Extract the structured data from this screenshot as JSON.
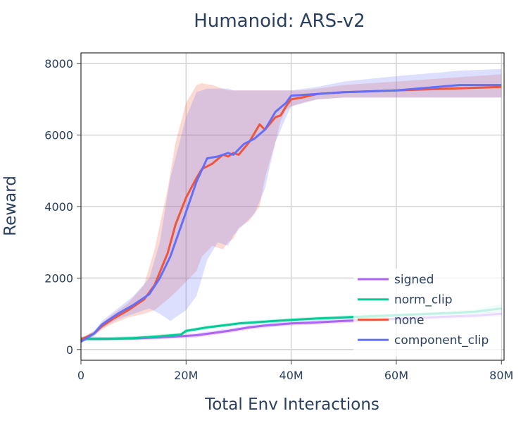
{
  "chart_data": {
    "type": "line",
    "title": "Humanoid: ARS-v2",
    "xlabel": "Total Env Interactions",
    "ylabel": "Reward",
    "xlim": [
      0,
      80500000
    ],
    "ylim": [
      -300,
      8300
    ],
    "x_ticks": [
      {
        "value": 0,
        "label": "0"
      },
      {
        "value": 20000000,
        "label": "20M"
      },
      {
        "value": 40000000,
        "label": "40M"
      },
      {
        "value": 60000000,
        "label": "60M"
      },
      {
        "value": 80000000,
        "label": "80M"
      }
    ],
    "y_ticks": [
      {
        "value": 0,
        "label": "0"
      },
      {
        "value": 2000,
        "label": "2000"
      },
      {
        "value": 4000,
        "label": "4000"
      },
      {
        "value": 6000,
        "label": "6000"
      },
      {
        "value": 8000,
        "label": "8000"
      }
    ],
    "grid": true,
    "legend_position": "bottom-right",
    "series": [
      {
        "name": "signed",
        "color": "#ab63fa",
        "x": [
          0,
          5000000,
          10000000,
          15000000,
          20000000,
          22000000,
          25000000,
          28000000,
          30000000,
          32000000,
          35000000,
          40000000,
          45000000,
          50000000,
          55000000,
          60000000,
          65000000,
          70000000,
          75000000,
          80000000
        ],
        "y": [
          300,
          300,
          310,
          340,
          380,
          400,
          460,
          520,
          570,
          620,
          670,
          730,
          760,
          800,
          830,
          860,
          890,
          920,
          950,
          1000
        ],
        "lower": [
          240,
          250,
          260,
          290,
          320,
          340,
          400,
          460,
          510,
          560,
          610,
          670,
          700,
          740,
          770,
          800,
          830,
          860,
          890,
          920
        ],
        "upper": [
          360,
          350,
          360,
          390,
          440,
          460,
          520,
          580,
          630,
          680,
          730,
          790,
          820,
          860,
          890,
          920,
          950,
          980,
          1010,
          1080
        ]
      },
      {
        "name": "norm_clip",
        "color": "#00cc96",
        "x": [
          0,
          5000000,
          10000000,
          15000000,
          19000000,
          20000000,
          24000000,
          28000000,
          30000000,
          35000000,
          40000000,
          45000000,
          50000000,
          55000000,
          60000000,
          65000000,
          70000000,
          75000000,
          80000000
        ],
        "y": [
          300,
          300,
          320,
          370,
          420,
          520,
          620,
          690,
          730,
          780,
          830,
          870,
          900,
          930,
          960,
          990,
          1020,
          1060,
          1150
        ],
        "lower": [
          240,
          250,
          270,
          320,
          370,
          470,
          570,
          640,
          680,
          730,
          780,
          820,
          850,
          880,
          910,
          940,
          970,
          1000,
          1040
        ],
        "upper": [
          360,
          350,
          370,
          420,
          470,
          570,
          670,
          740,
          780,
          830,
          880,
          920,
          950,
          980,
          1010,
          1040,
          1070,
          1120,
          1280
        ]
      },
      {
        "name": "none",
        "color": "#ef553b",
        "x": [
          0,
          2500000,
          4000000,
          6000000,
          9000000,
          12000000,
          14000000,
          16500000,
          18000000,
          20000000,
          22000000,
          23000000,
          25000000,
          27000000,
          28000000,
          29000000,
          30000000,
          32000000,
          34000000,
          35000000,
          37000000,
          38000000,
          39000000,
          40000000,
          42000000,
          45000000,
          50000000,
          60000000,
          70000000,
          80000000
        ],
        "y": [
          280,
          450,
          650,
          850,
          1100,
          1400,
          1800,
          2700,
          3500,
          4250,
          4800,
          5050,
          5200,
          5450,
          5400,
          5500,
          5450,
          5800,
          6300,
          6150,
          6500,
          6550,
          6800,
          7000,
          7050,
          7150,
          7200,
          7250,
          7300,
          7350
        ],
        "lower": [
          240,
          380,
          560,
          720,
          900,
          1000,
          1100,
          1400,
          1600,
          1900,
          2200,
          2600,
          2900,
          2800,
          3000,
          3100,
          3400,
          3600,
          4000,
          4800,
          5800,
          6400,
          6700,
          6800,
          6900,
          7000,
          7050,
          7050,
          7050,
          7050
        ],
        "upper": [
          330,
          520,
          750,
          980,
          1300,
          1800,
          2800,
          4500,
          5800,
          6900,
          7400,
          7450,
          7400,
          7300,
          7250,
          7250,
          7250,
          7250,
          7250,
          7250,
          7250,
          7250,
          7250,
          7250,
          7250,
          7300,
          7400,
          7500,
          7600,
          7700
        ]
      },
      {
        "name": "component_clip",
        "color": "#636efa",
        "x": [
          0,
          2500000,
          4000000,
          7000000,
          10000000,
          13000000,
          15000000,
          17000000,
          20000000,
          22000000,
          24000000,
          26000000,
          28000000,
          29000000,
          31000000,
          33000000,
          35000000,
          37000000,
          39000000,
          40000000,
          45000000,
          50000000,
          60000000,
          72000000,
          80000000
        ],
        "y": [
          220,
          450,
          700,
          1000,
          1250,
          1550,
          2000,
          2600,
          3850,
          4700,
          5350,
          5400,
          5500,
          5450,
          5750,
          5900,
          6150,
          6650,
          6900,
          7100,
          7150,
          7200,
          7250,
          7400,
          7400
        ],
        "lower": [
          180,
          380,
          600,
          850,
          1000,
          1150,
          1000,
          800,
          1100,
          1500,
          2500,
          3000,
          2900,
          3200,
          3500,
          3800,
          4500,
          5800,
          6500,
          6800,
          7000,
          7050,
          7050,
          7050,
          7050
        ],
        "upper": [
          280,
          520,
          800,
          1150,
          1500,
          2000,
          3000,
          4800,
          6500,
          7200,
          7300,
          7300,
          7300,
          7250,
          7250,
          7250,
          7250,
          7250,
          7250,
          7250,
          7350,
          7500,
          7650,
          7800,
          7850
        ]
      }
    ]
  }
}
